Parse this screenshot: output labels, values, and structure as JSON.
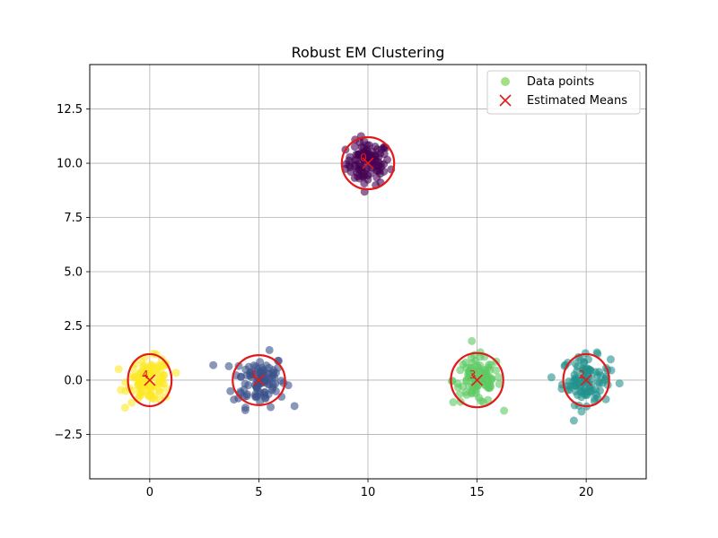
{
  "chart_data": {
    "type": "scatter",
    "title": "Robust EM Clustering",
    "xlabel": "",
    "ylabel": "",
    "xlim": [
      -2.75,
      22.75
    ],
    "ylim": [
      -4.55,
      14.55
    ],
    "x_ticks": [
      0,
      5,
      10,
      15,
      20
    ],
    "x_tick_labels": [
      "0",
      "5",
      "10",
      "15",
      "20"
    ],
    "y_ticks": [
      -2.5,
      0.0,
      2.5,
      5.0,
      7.5,
      10.0,
      12.5
    ],
    "y_tick_labels": [
      "−2.5",
      "0.0",
      "2.5",
      "5.0",
      "7.5",
      "10.0",
      "12.5"
    ],
    "grid": true,
    "legend_position": "top-right",
    "legend": [
      {
        "label": "Data points",
        "marker": "circle",
        "color": "#7ad151"
      },
      {
        "label": "Estimated Means",
        "marker": "x",
        "color": "#e31a1c"
      }
    ],
    "clusters": [
      {
        "label": "0",
        "mean": [
          10.0,
          10.0
        ],
        "spread": 0.5,
        "ellipse_radius": [
          1.2,
          1.2
        ],
        "color": "#440154",
        "n": 100
      },
      {
        "label": "1",
        "mean": [
          5.0,
          0.0
        ],
        "spread": 0.6,
        "ellipse_radius": [
          1.2,
          1.15
        ],
        "color": "#3b528b",
        "n": 100
      },
      {
        "label": "2",
        "mean": [
          20.0,
          0.0
        ],
        "spread": 0.55,
        "ellipse_radius": [
          1.05,
          1.2
        ],
        "color": "#21918c",
        "n": 100
      },
      {
        "label": "3",
        "mean": [
          15.0,
          0.0
        ],
        "spread": 0.55,
        "ellipse_radius": [
          1.2,
          1.25
        ],
        "color": "#5ec962",
        "n": 100
      },
      {
        "label": "4",
        "mean": [
          0.0,
          0.0
        ],
        "spread": 0.5,
        "ellipse_radius": [
          1.0,
          1.2
        ],
        "color": "#fde725",
        "n": 100
      }
    ],
    "mean_marker_color": "#e31a1c",
    "ellipse_color": "#e31a1c"
  }
}
